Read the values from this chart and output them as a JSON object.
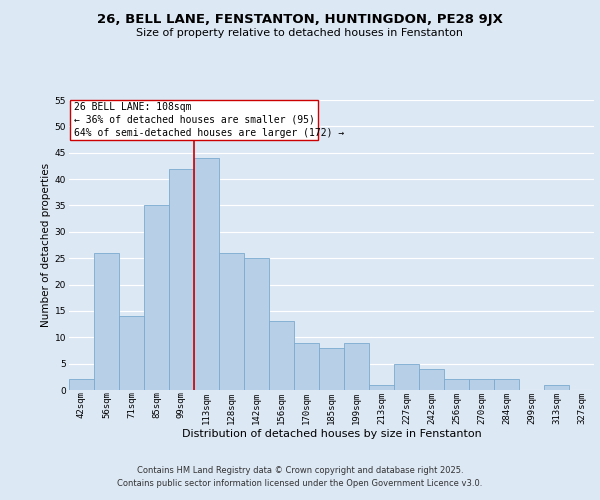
{
  "title": "26, BELL LANE, FENSTANTON, HUNTINGDON, PE28 9JX",
  "subtitle": "Size of property relative to detached houses in Fenstanton",
  "xlabel": "Distribution of detached houses by size in Fenstanton",
  "ylabel": "Number of detached properties",
  "footer_line1": "Contains HM Land Registry data © Crown copyright and database right 2025.",
  "footer_line2": "Contains public sector information licensed under the Open Government Licence v3.0.",
  "bar_labels": [
    "42sqm",
    "56sqm",
    "71sqm",
    "85sqm",
    "99sqm",
    "113sqm",
    "128sqm",
    "142sqm",
    "156sqm",
    "170sqm",
    "185sqm",
    "199sqm",
    "213sqm",
    "227sqm",
    "242sqm",
    "256sqm",
    "270sqm",
    "284sqm",
    "299sqm",
    "313sqm",
    "327sqm"
  ],
  "bar_values": [
    2,
    26,
    14,
    35,
    42,
    44,
    26,
    25,
    13,
    9,
    8,
    9,
    1,
    5,
    4,
    2,
    2,
    2,
    0,
    1,
    0
  ],
  "bar_color": "#b8cfe8",
  "bar_edge_color": "#7aaad0",
  "annotation_title": "26 BELL LANE: 108sqm",
  "annotation_line2": "← 36% of detached houses are smaller (95)",
  "annotation_line3": "64% of semi-detached houses are larger (172) →",
  "vline_color": "#cc0000",
  "vline_x_index": 4.5,
  "annotation_box_facecolor": "#ffffff",
  "annotation_box_edgecolor": "#cc0000",
  "ylim": [
    0,
    55
  ],
  "yticks": [
    0,
    5,
    10,
    15,
    20,
    25,
    30,
    35,
    40,
    45,
    50,
    55
  ],
  "bg_color": "#dde8f5",
  "plot_bg_color": "#dde8f5",
  "grid_color": "#ffffff",
  "title_fontsize": 9.5,
  "subtitle_fontsize": 8.0,
  "xlabel_fontsize": 8.0,
  "ylabel_fontsize": 7.5,
  "tick_fontsize": 6.5,
  "annotation_fontsize": 7.0,
  "footer_fontsize": 6.0
}
